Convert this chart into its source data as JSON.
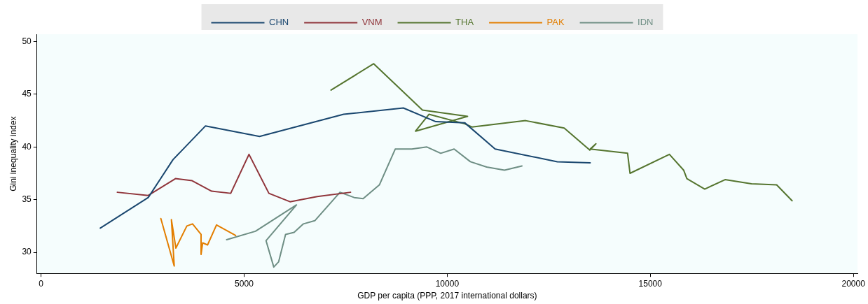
{
  "chart_data": {
    "type": "line",
    "xlabel": "GDP per capita (PPP, 2017 international dollars)",
    "ylabel": "Gini inequality index",
    "xlim": [
      -100,
      20100
    ],
    "ylim": [
      28,
      50.7
    ],
    "xticks": [
      0,
      5000,
      10000,
      15000,
      20000
    ],
    "yticks": [
      30,
      35,
      40,
      45,
      50
    ],
    "grid": false,
    "legend": "top",
    "marker": "none",
    "line_style": "solid",
    "series": [
      {
        "name": "CHN",
        "color": "#1a476f",
        "x": [
          1460,
          2640,
          3250,
          4050,
          5380,
          7450,
          8920,
          9720,
          10430,
          11180,
          12710,
          13520
        ],
        "values": [
          32.3,
          35.2,
          38.8,
          42.0,
          41.0,
          43.1,
          43.7,
          42.4,
          42.3,
          39.8,
          38.6,
          38.5
        ]
      },
      {
        "name": "VNM",
        "color": "#90353b",
        "x": [
          1880,
          2640,
          3310,
          3720,
          4200,
          4670,
          5120,
          5610,
          6130,
          6800,
          7620
        ],
        "values": [
          35.7,
          35.4,
          37.0,
          36.8,
          35.8,
          35.6,
          39.3,
          35.6,
          34.8,
          35.3,
          35.7
        ]
      },
      {
        "name": "THA",
        "color": "#55752f",
        "x": [
          7140,
          8190,
          9390,
          10500,
          9220,
          9550,
          10430,
          10610,
          11930,
          12880,
          13510,
          13660,
          13520,
          14440,
          14500,
          15470,
          15820,
          15900,
          16340,
          16840,
          17490,
          18110,
          18490
        ],
        "values": [
          45.4,
          47.9,
          43.5,
          42.9,
          41.5,
          43.1,
          42.2,
          41.9,
          42.5,
          41.8,
          39.7,
          40.3,
          39.8,
          39.4,
          37.5,
          39.3,
          37.8,
          37.0,
          36.0,
          36.9,
          36.5,
          36.4,
          34.9
        ]
      },
      {
        "name": "PAK",
        "color": "#e37e00",
        "x": [
          2950,
          3280,
          3210,
          3320,
          3590,
          3730,
          3940,
          3940,
          3980,
          4100,
          4320,
          4790
        ],
        "values": [
          33.2,
          28.7,
          33.1,
          30.4,
          32.5,
          32.7,
          31.7,
          29.8,
          30.9,
          30.7,
          32.6,
          31.6
        ]
      },
      {
        "name": "IDN",
        "color": "#6e8e84",
        "x": [
          4570,
          5280,
          6290,
          5540,
          5730,
          5850,
          6020,
          6230,
          6460,
          6740,
          7360,
          7710,
          7930,
          8330,
          8720,
          9130,
          9500,
          9840,
          10170,
          10570,
          10970,
          11410,
          11840
        ],
        "values": [
          31.2,
          32.0,
          34.5,
          31.1,
          28.6,
          29.1,
          31.7,
          31.9,
          32.7,
          33.0,
          35.7,
          35.2,
          35.1,
          36.4,
          39.8,
          39.8,
          40.0,
          39.4,
          39.8,
          38.6,
          38.1,
          37.8,
          38.2
        ]
      }
    ]
  }
}
